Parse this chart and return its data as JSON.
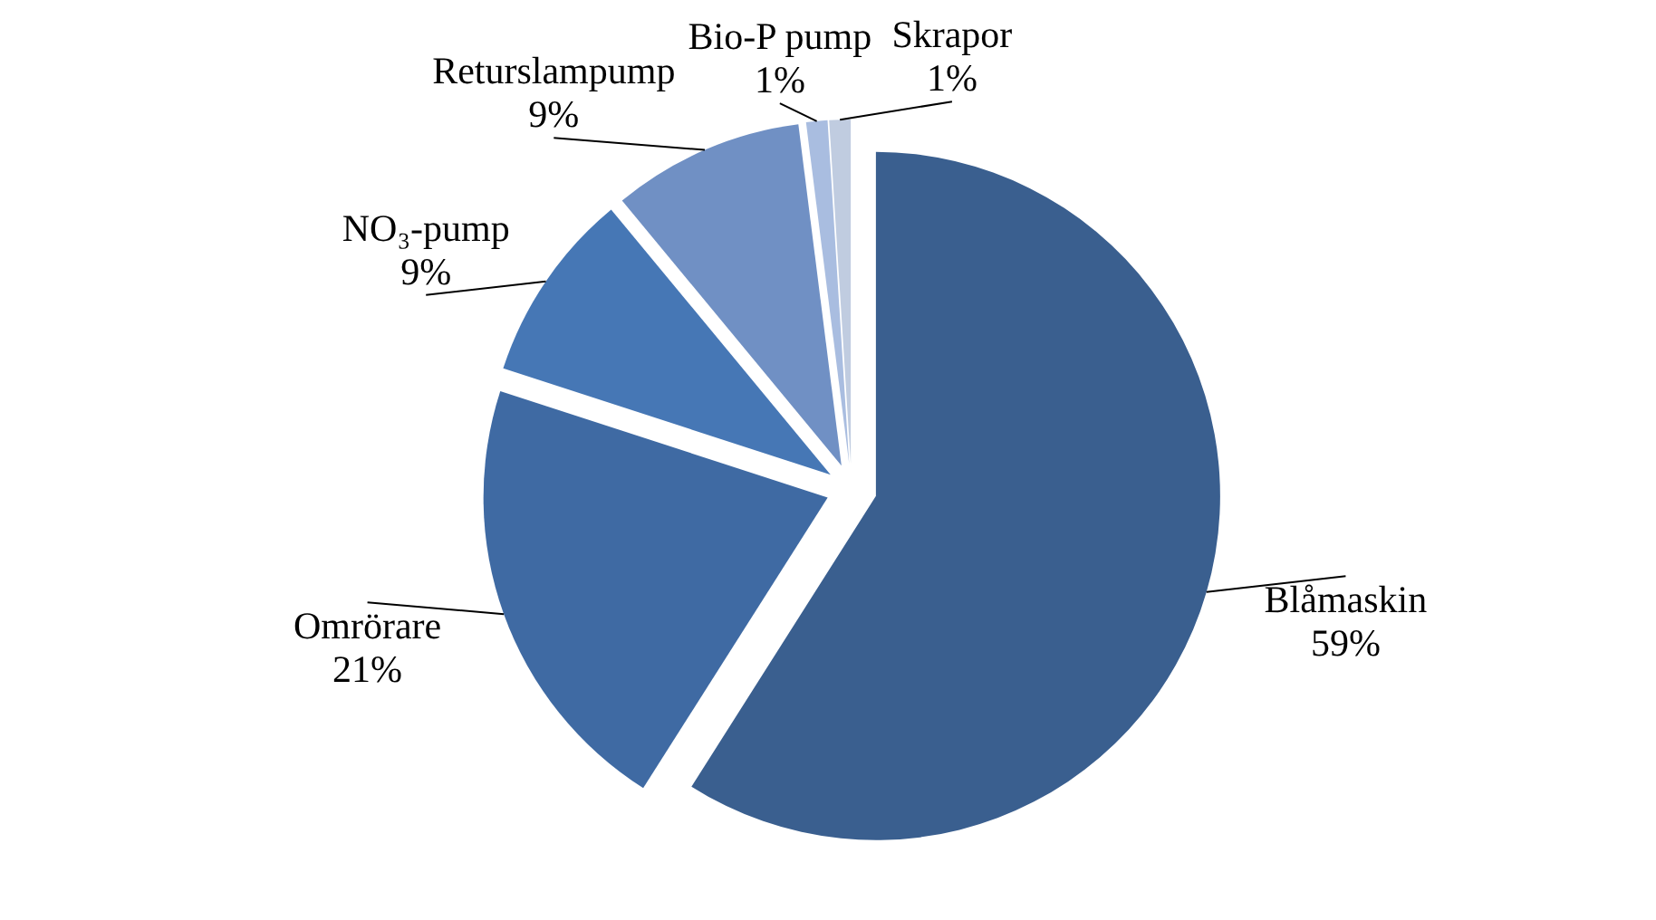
{
  "chart_data": {
    "type": "pie",
    "categories": [
      "Blåmaskin",
      "Omrörare",
      "NO₃-pump",
      "Returslampump",
      "Bio-P pump",
      "Skrapor"
    ],
    "values": [
      59,
      21,
      9,
      9,
      1,
      1
    ],
    "value_labels": [
      "59%",
      "21%",
      "9%",
      "9%",
      "1%",
      "1%"
    ],
    "colors": [
      "#3a5f8f",
      "#3f6aa3",
      "#4677b5",
      "#7090c4",
      "#a9bde0",
      "#c0cce0"
    ]
  }
}
